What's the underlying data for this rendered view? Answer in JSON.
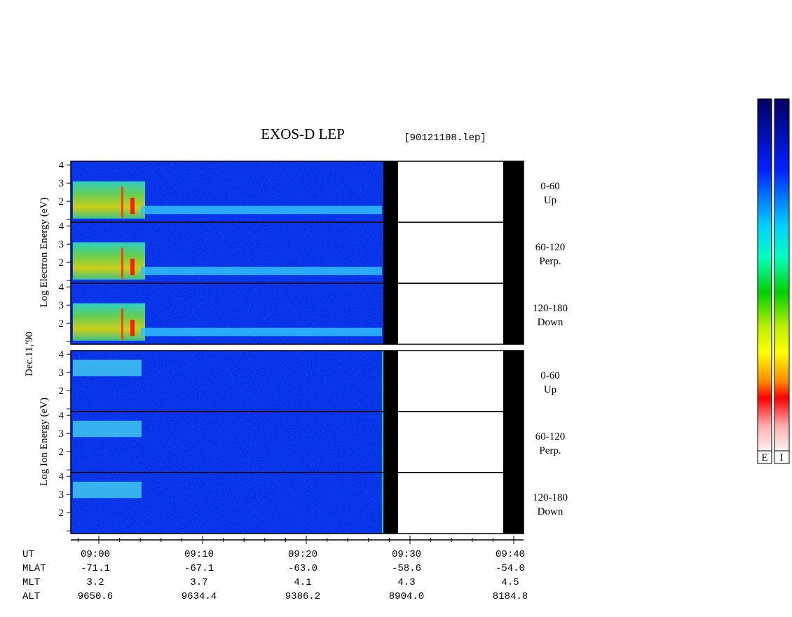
{
  "title": "EXOS-D LEP",
  "file": "[90121108.lep]",
  "date_label": "Dec.11,'90",
  "ylim": [
    0.85,
    4.2
  ],
  "yticks": [
    1,
    2,
    3,
    4
  ],
  "blocks": [
    {
      "ylabel": "Log  Electron  Energy  (eV)",
      "panels": [
        {
          "pitch": "0-60",
          "dir": "Up"
        },
        {
          "pitch": "60-120",
          "dir": "Perp."
        },
        {
          "pitch": "120-180",
          "dir": "Down"
        }
      ]
    },
    {
      "ylabel": "Log   Ion  Energy  (eV)",
      "panels": [
        {
          "pitch": "0-60",
          "dir": "Up"
        },
        {
          "pitch": "60-120",
          "dir": "Perp."
        },
        {
          "pitch": "120-180",
          "dir": "Down"
        }
      ]
    }
  ],
  "time_rows": [
    {
      "name": "UT",
      "values": [
        "09:00",
        "09:10",
        "09:20",
        "09:30",
        "09:40"
      ]
    },
    {
      "name": "MLAT",
      "values": [
        "-71.1",
        "-67.1",
        "-63.0",
        "-58.6",
        "-54.0"
      ]
    },
    {
      "name": "MLT",
      "values": [
        "3.2",
        "3.7",
        "4.1",
        "4.3",
        "4.5"
      ]
    },
    {
      "name": "ALT",
      "values": [
        "9650.6",
        "9634.4",
        "9386.2",
        "8904.0",
        "8184.8"
      ]
    }
  ],
  "colorbars": [
    "E",
    "I"
  ]
}
